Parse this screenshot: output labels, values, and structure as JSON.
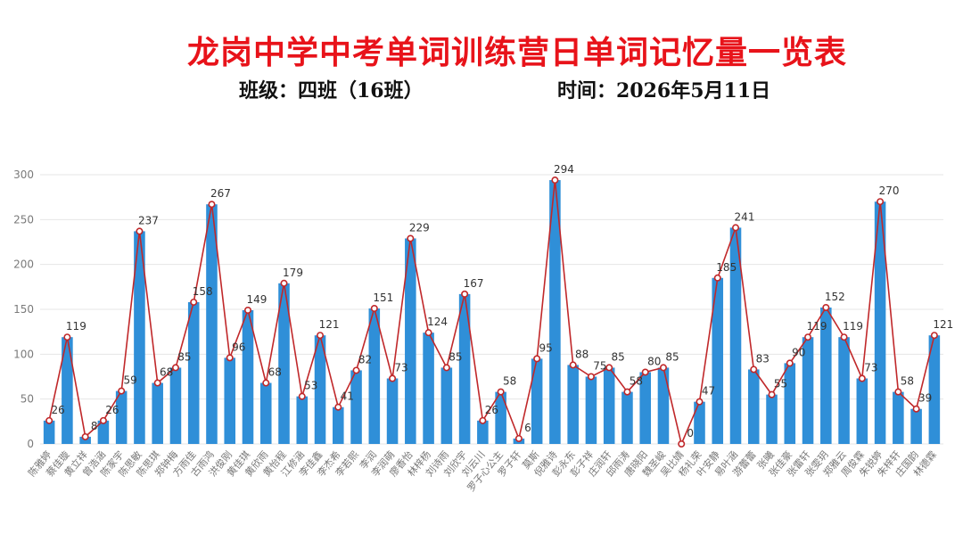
{
  "header": {
    "title": "龙岗中学中考单词训练营日单词记忆量一览表",
    "class_info": "班级：四班（16班）",
    "date_info": "时间：2026年5月11日"
  },
  "colors": {
    "bar": "#2f8fd8",
    "line": "#c0282a",
    "point_fill": "#ffffff",
    "grid": "#e6e6e6",
    "title": "#e8131a"
  },
  "chart_data": {
    "type": "bar",
    "overlay": "line",
    "title": "",
    "xlabel": "",
    "ylabel": "",
    "ylim": [
      0,
      300
    ],
    "yticks": [
      0,
      50,
      100,
      150,
      200,
      250,
      300
    ],
    "grid": true,
    "categories": [
      "陈雅婷",
      "蔡佳璇",
      "黄立祥",
      "曾浩涵",
      "陈家宇",
      "陈思敏",
      "陈思琪",
      "郑钟梅",
      "方雨佳",
      "古雨鸿",
      "洪俊刚",
      "黄佳琪",
      "黄欣雨",
      "黄怡程",
      "江修涵",
      "李佳鑫",
      "李杰希",
      "李若熙",
      "李润",
      "李润萌",
      "廖香怡",
      "林梓杨",
      "刘诗雨",
      "刘欣宇",
      "刘云川",
      "罗子心公主",
      "罗子轩",
      "莫斯",
      "倪雅诗",
      "彭永东",
      "彭子祥",
      "庄润轩",
      "邱雨涛",
      "唐晓阳",
      "魏圣峻",
      "吴比婧",
      "杨礼荣",
      "叶安静",
      "易叶涵",
      "游蕾蕾",
      "张曦",
      "张佳豪",
      "张雷轩",
      "张雯玥",
      "郑雅云",
      "周俊霖",
      "朱锐婷",
      "朱梓轩",
      "庄国韵",
      "林德霖"
    ],
    "values": [
      26,
      119,
      8,
      26,
      59,
      237,
      68,
      85,
      158,
      267,
      96,
      149,
      68,
      179,
      53,
      121,
      41,
      82,
      151,
      73,
      229,
      124,
      85,
      167,
      26,
      58,
      6,
      95,
      294,
      88,
      75,
      85,
      58,
      80,
      85,
      0,
      47,
      185,
      241,
      83,
      55,
      90,
      119,
      152,
      119,
      73,
      270,
      58,
      39,
      121
    ]
  }
}
